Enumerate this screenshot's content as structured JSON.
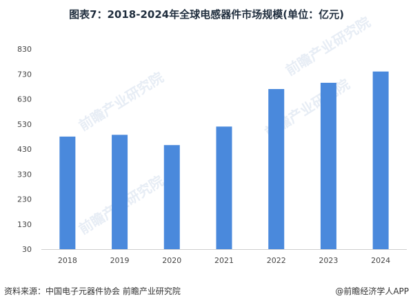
{
  "title": "图表7：2018-2024年全球电感器件市场规模(单位：亿元)",
  "source": "资料来源：中国电子元器件协会 前瞻产业研究院",
  "credit": "@前瞻经济学人APP",
  "watermark": "前瞻产业研究院",
  "colors": {
    "bar": "#4a89dc",
    "axis": "#cfcfcf"
  },
  "chart_data": {
    "type": "bar",
    "categories": [
      "2018",
      "2019",
      "2020",
      "2021",
      "2022",
      "2023",
      "2024"
    ],
    "values": [
      480,
      487,
      446,
      520,
      670,
      695,
      740
    ],
    "title": "图表7：2018-2024年全球电感器件市场规模(单位：亿元)",
    "ylim": [
      30,
      830
    ],
    "yticks": [
      30,
      130,
      230,
      330,
      430,
      530,
      630,
      730,
      830
    ],
    "grid": false,
    "legend": "none"
  }
}
